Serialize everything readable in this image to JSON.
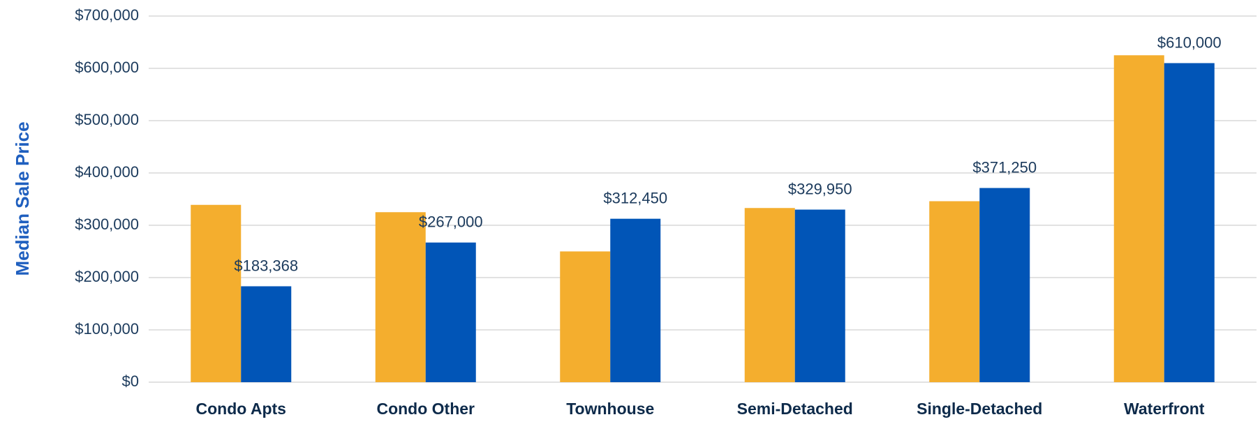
{
  "chart_data": {
    "type": "bar",
    "ylabel": "Median Sale Price",
    "categories": [
      "Condo Apts",
      "Condo Other",
      "Townhouse",
      "Semi-Detached",
      "Single-Detached",
      "Waterfront"
    ],
    "series": [
      {
        "color": "#f4ae2e",
        "values": [
          339000,
          325000,
          250000,
          333000,
          346000,
          625000
        ]
      },
      {
        "color": "#0155b7",
        "values": [
          183368,
          267000,
          312450,
          329950,
          371250,
          610000
        ],
        "value_labels": [
          "$183,368",
          "$267,000",
          "$312,450",
          "$329,950",
          "$371,250",
          "$610,000"
        ]
      }
    ],
    "ylim": [
      0,
      700000
    ],
    "yticks": [
      {
        "value": 0,
        "label": "$0"
      },
      {
        "value": 100000,
        "label": "$100,000"
      },
      {
        "value": 200000,
        "label": "$200,000"
      },
      {
        "value": 300000,
        "label": "$300,000"
      },
      {
        "value": 400000,
        "label": "$400,000"
      },
      {
        "value": 500000,
        "label": "$500,000"
      },
      {
        "value": 600000,
        "label": "$600,000"
      },
      {
        "value": 700000,
        "label": "$700,000"
      }
    ],
    "grid": true
  }
}
